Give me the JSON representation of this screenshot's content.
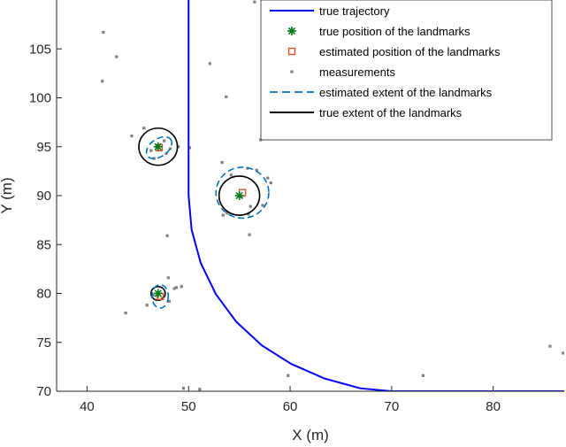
{
  "chart_data": {
    "type": "scatter",
    "xlabel": "X (m)",
    "ylabel": "Y (m)",
    "xlim": [
      37,
      87
    ],
    "ylim": [
      70,
      110
    ],
    "xticks": [
      40,
      50,
      60,
      70,
      80
    ],
    "yticks": [
      70,
      75,
      80,
      85,
      90,
      95,
      100,
      105
    ],
    "grid": false,
    "legend_position": "top-right",
    "legend": [
      {
        "label": "true trajectory",
        "style": "solid-line",
        "color": "#0000ff"
      },
      {
        "label": "true position of the landmarks",
        "style": "star-marker",
        "color": "#007a1a"
      },
      {
        "label": "estimated position of the landmarks",
        "style": "square-marker",
        "color": "#d9531e"
      },
      {
        "label": "measurements",
        "style": "dot-marker",
        "color": "#808080"
      },
      {
        "label": "estimated extent of the landmarks",
        "style": "dashed-line",
        "color": "#0072bd"
      },
      {
        "label": "true extent of the landmarks",
        "style": "solid-line",
        "color": "#000000"
      }
    ],
    "series": [
      {
        "name": "true trajectory",
        "kind": "path",
        "x": [
          50,
          50,
          50,
          50.3,
          51.2,
          52.7,
          54.7,
          57.2,
          60.1,
          63.4,
          66.9,
          70,
          87
        ],
        "y": [
          110,
          100,
          90,
          86.5,
          83.1,
          79.9,
          77.1,
          74.7,
          72.8,
          71.3,
          70.3,
          70,
          70
        ]
      },
      {
        "name": "true position of the landmarks",
        "kind": "marker",
        "x": [
          47,
          55,
          47
        ],
        "y": [
          95,
          90,
          80
        ]
      },
      {
        "name": "estimated position of the landmarks",
        "kind": "marker",
        "x": [
          47.1,
          55.3,
          47.2
        ],
        "y": [
          94.9,
          90.3,
          79.7
        ]
      },
      {
        "name": "measurements",
        "kind": "marker",
        "x": [
          41.6,
          42.9,
          41.5,
          45.6,
          44.4,
          46.3,
          47.6,
          48.2,
          49.0,
          46.6,
          47.8,
          50.1,
          53.3,
          53.7,
          52.1,
          56.5,
          57.1,
          54.2,
          55.8,
          56.7,
          57.8,
          58.1,
          55.2,
          53.8,
          56.1,
          57.3,
          55.9,
          53.4,
          56.0,
          47.9,
          48.0,
          48.6,
          48.8,
          49.3,
          46.5,
          47.4,
          45.9,
          43.8,
          48.1,
          49.5,
          51.1,
          59.8,
          73.1,
          85.6,
          86.9
        ],
        "y": [
          106.7,
          104.2,
          101.7,
          96.9,
          96.1,
          94.6,
          95.6,
          94.8,
          95.0,
          93.8,
          94.3,
          94.9,
          93.4,
          100.1,
          103.5,
          109.8,
          95.7,
          92.1,
          92.8,
          92.6,
          91.8,
          91.3,
          89.9,
          88.2,
          88.9,
          89.0,
          88.1,
          88.0,
          86.0,
          85.9,
          81.6,
          80.5,
          80.6,
          80.7,
          79.8,
          79.5,
          78.8,
          78.0,
          79.2,
          70.3,
          70.2,
          71.6,
          71.6,
          74.6,
          73.9
        ]
      },
      {
        "name": "estimated extent of the landmarks",
        "kind": "ellipse",
        "ellipses": [
          {
            "cx": 47.1,
            "cy": 94.9,
            "rx": 1.4,
            "ry": 0.9,
            "angle_deg": 35
          },
          {
            "cx": 55.3,
            "cy": 90.3,
            "rx": 2.6,
            "ry": 2.6,
            "angle_deg": 0
          },
          {
            "cx": 47.2,
            "cy": 79.7,
            "rx": 0.8,
            "ry": 1.2,
            "angle_deg": 0
          }
        ]
      },
      {
        "name": "true extent of the landmarks",
        "kind": "ellipse",
        "ellipses": [
          {
            "cx": 47,
            "cy": 95,
            "rx": 1.9,
            "ry": 1.9,
            "angle_deg": 0
          },
          {
            "cx": 55,
            "cy": 90,
            "rx": 2.0,
            "ry": 2.0,
            "angle_deg": 0
          },
          {
            "cx": 47,
            "cy": 80,
            "rx": 0.7,
            "ry": 0.7,
            "angle_deg": 0
          }
        ]
      }
    ]
  }
}
